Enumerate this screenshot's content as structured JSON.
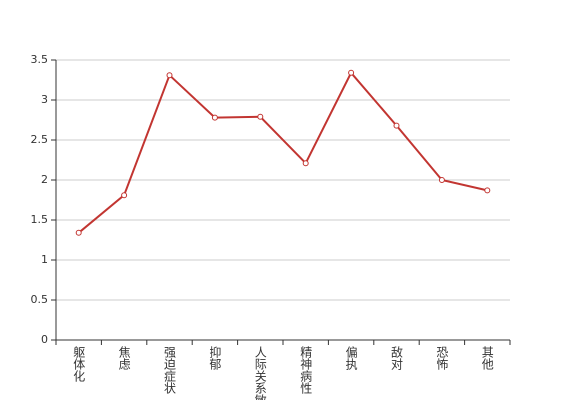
{
  "chart_data": {
    "type": "line",
    "categories": [
      "躯体化",
      "焦虑",
      "强迫症状",
      "抑郁",
      "人际关系敏感",
      "精神病性",
      "偏执",
      "敌对",
      "恐怖",
      "其他"
    ],
    "values": [
      1.34,
      1.81,
      3.31,
      2.78,
      2.79,
      2.21,
      3.34,
      2.68,
      2.0,
      1.87
    ],
    "color": "#c23531",
    "ylim": [
      0,
      3.5
    ],
    "yticks": [
      0,
      0.5,
      1,
      1.5,
      2,
      2.5,
      3,
      3.5
    ],
    "grid": true
  }
}
